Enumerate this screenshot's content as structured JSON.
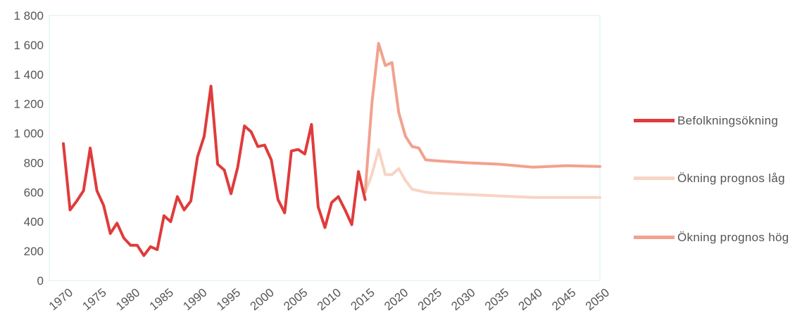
{
  "chart_data": {
    "type": "line",
    "title": "",
    "xlabel": "",
    "ylabel": "",
    "xlim": [
      1970,
      2050
    ],
    "ylim": [
      0,
      1800
    ],
    "grid": false,
    "legend_position": "right",
    "x_ticks": [
      "1970",
      "1975",
      "1980",
      "1985",
      "1990",
      "1995",
      "2000",
      "2005",
      "2010",
      "2015",
      "2020",
      "2025",
      "2030",
      "2035",
      "2040",
      "2045",
      "2050"
    ],
    "y_ticks": [
      "0",
      "200",
      "400",
      "600",
      "800",
      "1 000",
      "1 200",
      "1 400",
      "1 600",
      "1 800"
    ],
    "y_tick_values": [
      0,
      200,
      400,
      600,
      800,
      1000,
      1200,
      1400,
      1600,
      1800
    ],
    "series": [
      {
        "name": "Befolkningsökning",
        "color": "#e03b3b",
        "x": [
          1970,
          1971,
          1972,
          1973,
          1974,
          1975,
          1976,
          1977,
          1978,
          1979,
          1980,
          1981,
          1982,
          1983,
          1984,
          1985,
          1986,
          1987,
          1988,
          1989,
          1990,
          1991,
          1992,
          1993,
          1994,
          1995,
          1996,
          1997,
          1998,
          1999,
          2000,
          2001,
          2002,
          2003,
          2004,
          2005,
          2006,
          2007,
          2008,
          2009,
          2010,
          2011,
          2012,
          2013,
          2014,
          2015
        ],
        "y": [
          930,
          480,
          540,
          610,
          900,
          610,
          510,
          320,
          390,
          290,
          240,
          240,
          170,
          230,
          210,
          440,
          400,
          570,
          480,
          540,
          840,
          980,
          1320,
          790,
          750,
          590,
          770,
          1050,
          1010,
          910,
          920,
          820,
          550,
          460,
          880,
          890,
          860,
          1060,
          500,
          360,
          530,
          570,
          480,
          380,
          740,
          550
        ]
      },
      {
        "name": "Ökning prognos låg",
        "color": "#f7d4c4",
        "x": [
          2015,
          2016,
          2017,
          2018,
          2019,
          2020,
          2021,
          2022,
          2023,
          2024,
          2025,
          2030,
          2035,
          2040,
          2045,
          2050
        ],
        "y": [
          600,
          720,
          890,
          720,
          720,
          760,
          680,
          620,
          610,
          600,
          595,
          585,
          575,
          565,
          565,
          565
        ]
      },
      {
        "name": "Ökning prognos hög",
        "color": "#f2a18e",
        "x": [
          2015,
          2016,
          2017,
          2018,
          2019,
          2020,
          2021,
          2022,
          2023,
          2024,
          2025,
          2030,
          2035,
          2040,
          2045,
          2050
        ],
        "y": [
          600,
          1200,
          1610,
          1460,
          1480,
          1140,
          980,
          910,
          900,
          820,
          815,
          800,
          790,
          770,
          780,
          775
        ]
      }
    ]
  }
}
